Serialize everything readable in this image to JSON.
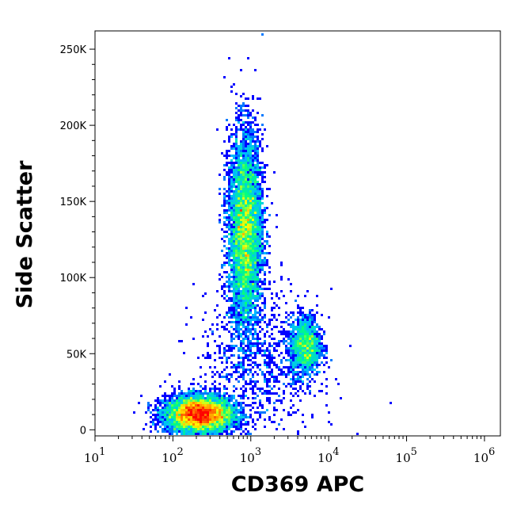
{
  "chart_data": {
    "type": "heatmap",
    "subtype": "flow-cytometry density dot plot",
    "xlabel": "CD369 APC",
    "ylabel": "Side Scatter",
    "x_scale": "log",
    "xlim": [
      10,
      1600000
    ],
    "ylim": [
      -4000,
      262000
    ],
    "x_ticks": [
      {
        "value": 10,
        "base": "10",
        "exp": "1"
      },
      {
        "value": 100,
        "base": "10",
        "exp": "2"
      },
      {
        "value": 1000,
        "base": "10",
        "exp": "3"
      },
      {
        "value": 10000,
        "base": "10",
        "exp": "4"
      },
      {
        "value": 100000,
        "base": "10",
        "exp": "5"
      },
      {
        "value": 1000000,
        "base": "10",
        "exp": "6"
      }
    ],
    "y_ticks": [
      {
        "value": 0,
        "label": "0"
      },
      {
        "value": 50000,
        "label": "50K"
      },
      {
        "value": 100000,
        "label": "100K"
      },
      {
        "value": 150000,
        "label": "150K"
      },
      {
        "value": 200000,
        "label": "200K"
      },
      {
        "value": 250000,
        "label": "250K"
      }
    ],
    "populations": [
      {
        "center_x": 220,
        "center_y": 10000,
        "sd_log10_x": 0.22,
        "sd_y": 6000,
        "weight": 0.42
      },
      {
        "center_x": 850,
        "center_y": 130000,
        "sd_log10_x": 0.11,
        "sd_y": 32000,
        "weight": 0.42
      },
      {
        "center_x": 5000,
        "center_y": 55000,
        "sd_log10_x": 0.1,
        "sd_y": 10000,
        "weight": 0.1
      },
      {
        "center_x": 1200,
        "center_y": 40000,
        "sd_log10_x": 0.4,
        "sd_y": 25000,
        "weight": 0.06
      }
    ],
    "color_scale": [
      "#0000ff",
      "#00c0ff",
      "#00ff80",
      "#ffff00",
      "#ff8000",
      "#ff0000"
    ],
    "grid": false,
    "legend": "none"
  }
}
